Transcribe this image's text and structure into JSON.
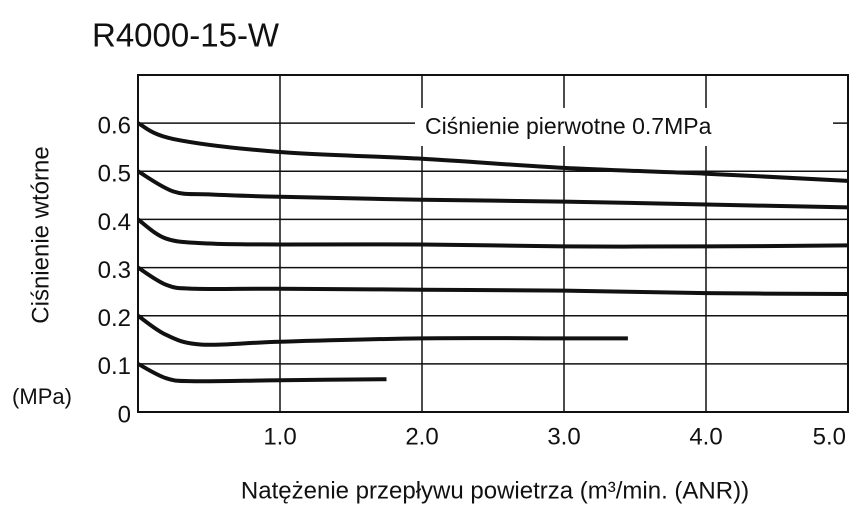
{
  "chart_data": {
    "type": "line",
    "title": "R4000-15-W",
    "x_label": "Natężenie przepływu powietrza (m³/min. (ANR))",
    "y_label": "Ciśnienie wtórne",
    "y_unit": "(MPa)",
    "annotation": "Ciśnienie pierwotne 0.7MPa",
    "xlim": [
      0,
      5
    ],
    "ylim": [
      0,
      0.7
    ],
    "xticks": [
      {
        "value": 1,
        "label": "1.0"
      },
      {
        "value": 2,
        "label": "2.0"
      },
      {
        "value": 3,
        "label": "3.0"
      },
      {
        "value": 4,
        "label": "4.0"
      },
      {
        "value": 5,
        "label": "5.0"
      }
    ],
    "yticks": [
      0,
      0.1,
      0.2,
      0.3,
      0.4,
      0.5,
      0.6
    ],
    "grid": true,
    "series": [
      {
        "color": "#111111",
        "x": [
          0,
          0.25,
          1,
          2,
          3,
          4,
          5
        ],
        "values": [
          0.6,
          0.567,
          0.54,
          0.526,
          0.507,
          0.495,
          0.48
        ]
      },
      {
        "color": "#111111",
        "x": [
          0,
          0.25,
          0.5,
          1,
          2,
          3,
          4,
          5
        ],
        "values": [
          0.5,
          0.458,
          0.452,
          0.447,
          0.441,
          0.437,
          0.431,
          0.425
        ]
      },
      {
        "color": "#111111",
        "x": [
          0,
          0.2,
          0.5,
          1,
          2,
          3,
          4,
          5
        ],
        "values": [
          0.4,
          0.36,
          0.35,
          0.348,
          0.348,
          0.344,
          0.344,
          0.346
        ]
      },
      {
        "color": "#111111",
        "x": [
          0,
          0.2,
          0.4,
          1,
          2,
          3,
          4,
          5
        ],
        "values": [
          0.3,
          0.264,
          0.256,
          0.256,
          0.254,
          0.252,
          0.247,
          0.245
        ]
      },
      {
        "color": "#111111",
        "x": [
          0,
          0.2,
          0.45,
          1,
          2,
          3,
          3.45
        ],
        "values": [
          0.2,
          0.16,
          0.14,
          0.146,
          0.153,
          0.153,
          0.153
        ]
      },
      {
        "color": "#111111",
        "x": [
          0,
          0.2,
          0.4,
          1,
          1.75
        ],
        "values": [
          0.1,
          0.07,
          0.064,
          0.066,
          0.068
        ]
      }
    ]
  }
}
